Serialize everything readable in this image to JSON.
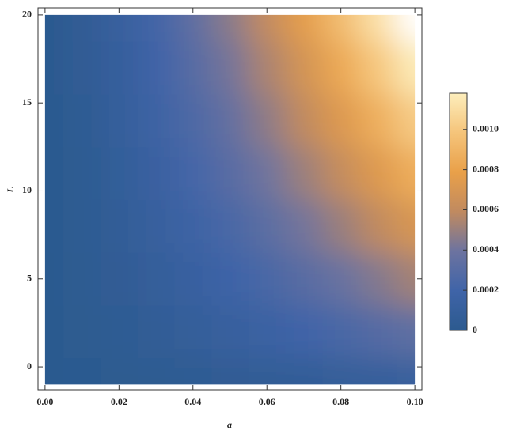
{
  "chart_data": {
    "type": "heatmap",
    "x_label": "a",
    "y_label": "L",
    "x": [
      0,
      0.01,
      0.02,
      0.03,
      0.04,
      0.05,
      0.06,
      0.07,
      0.08,
      0.09,
      0.1
    ],
    "y": [
      -1,
      2,
      5,
      8,
      11,
      14,
      17,
      20
    ],
    "values": [
      [
        0,
        4e-06,
        1e-05,
        1.8e-05,
        2.8e-05,
        3.9e-05,
        5.1e-05,
        6.5e-05,
        7.9e-05,
        9.5e-05,
        0.000111
      ],
      [
        0,
        1.06e-05,
        3e-05,
        5.51e-05,
        8.49e-05,
        0.0001186,
        0.0001559,
        0.0001965,
        0.00024,
        0.0002864,
        0.0003355
      ],
      [
        0,
        1.66e-05,
        4.7e-05,
        8.63e-05,
        0.0001328,
        0.0001856,
        0.000244,
        0.0003074,
        0.0003756,
        0.0004482,
        0.000525
      ],
      [
        0,
        2.21e-05,
        6.25e-05,
        0.0001148,
        0.0001767,
        0.0002469,
        0.0003246,
        0.000409,
        0.0004997,
        0.0005963,
        0.0006984
      ],
      [
        0,
        2.72e-05,
        7.7e-05,
        0.0001415,
        0.0002179,
        0.0003045,
        0.0004003,
        0.0005044,
        0.0006162,
        0.0007353,
        0.0008612
      ],
      [
        0,
        3.22e-05,
        9.1e-05,
        0.0001672,
        0.0002573,
        0.0003596,
        0.0004727,
        0.0005957,
        0.0007278,
        0.0008685,
        0.001017
      ],
      [
        0,
        3.69e-05,
        0.0001043,
        0.0001917,
        0.0002951,
        0.0004124,
        0.0005422,
        0.0006832,
        0.0008347,
        0.000996,
        0.001167
      ],
      [
        0,
        4.15e-05,
        0.0001173,
        0.0002156,
        0.0003318,
        0.0004637,
        0.0006096,
        0.0007681,
        0.0009384,
        0.00112,
        null
      ]
    ],
    "xlim": [
      -0.0019,
      0.1019
    ],
    "ylim": [
      -1.3,
      20.4
    ],
    "xticks": [
      {
        "value": 0,
        "label": "0.00"
      },
      {
        "value": 0.02,
        "label": "0.02"
      },
      {
        "value": 0.04,
        "label": "0.04"
      },
      {
        "value": 0.06,
        "label": "0.06"
      },
      {
        "value": 0.08,
        "label": "0.08"
      },
      {
        "value": 0.1,
        "label": "0.10"
      }
    ],
    "yticks": [
      0,
      5,
      10,
      15,
      20
    ],
    "clim": [
      0,
      0.00118
    ],
    "cticks": [
      0,
      0.0002,
      0.0004,
      0.0006,
      0.0008,
      {
        "value": 0.001,
        "label": "0.0010"
      }
    ],
    "colormap": [
      "#2c5a8f",
      "#3f64a8",
      "#6c73a0",
      "#c08a60",
      "#e9a049",
      "#f5c47a",
      "#fdeebc"
    ]
  }
}
